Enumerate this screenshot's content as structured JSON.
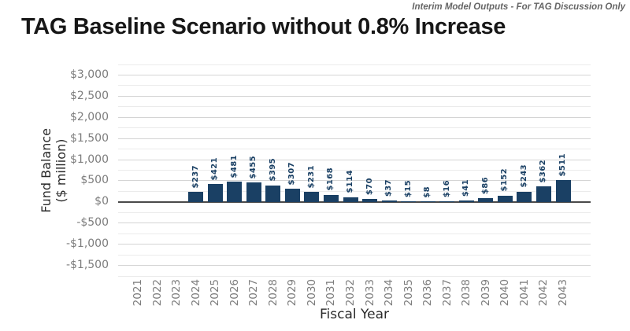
{
  "header": {
    "disclaimer": "Interim Model Outputs - For TAG Discussion Only",
    "title": "TAG Baseline Scenario without 0.8% Increase"
  },
  "chart_data": {
    "type": "bar",
    "title": "TAG Baseline Scenario without 0.8% Increase",
    "xlabel": "Fiscal Year",
    "ylabel": "Fund Balance ($ million)",
    "ylabel_lines": [
      "Fund Balance",
      "($ million)"
    ],
    "categories": [
      "2021",
      "2022",
      "2023",
      "2024",
      "2025",
      "2026",
      "2027",
      "2028",
      "2029",
      "2030",
      "2031",
      "2032",
      "2033",
      "2034",
      "2035",
      "2036",
      "2037",
      "2038",
      "2039",
      "2040",
      "2041",
      "2042",
      "2043"
    ],
    "values": [
      null,
      null,
      null,
      237,
      421,
      481,
      455,
      395,
      307,
      231,
      168,
      114,
      70,
      37,
      15,
      8,
      16,
      41,
      86,
      152,
      243,
      362,
      511
    ],
    "bar_labels": [
      null,
      null,
      null,
      "$237",
      "$421",
      "$481",
      "$455",
      "$395",
      "$307",
      "$231",
      "$168",
      "$114",
      "$70",
      "$37",
      "$15",
      "$8",
      "$16",
      "$41",
      "$86",
      "$152",
      "$243",
      "$362",
      "$511"
    ],
    "ylim": [
      -1750,
      3250
    ],
    "y_major_step": 500,
    "y_minor_step": 250,
    "yticks": [
      {
        "value": 3000,
        "label": "$3,000"
      },
      {
        "value": 2500,
        "label": "$2,500"
      },
      {
        "value": 2000,
        "label": "$2,000"
      },
      {
        "value": 1500,
        "label": "$1,500"
      },
      {
        "value": 1000,
        "label": "$1,000"
      },
      {
        "value": 500,
        "label": "$500"
      },
      {
        "value": 0,
        "label": "$0"
      },
      {
        "value": -500,
        "label": "-$500"
      },
      {
        "value": -1000,
        "label": "-$1,000"
      },
      {
        "value": -1500,
        "label": "-$1,500"
      }
    ],
    "bar_color": "#1a4064",
    "label_color": "#1a4064",
    "grid": "horizontal major+minor, dark zero line",
    "legend": null
  }
}
